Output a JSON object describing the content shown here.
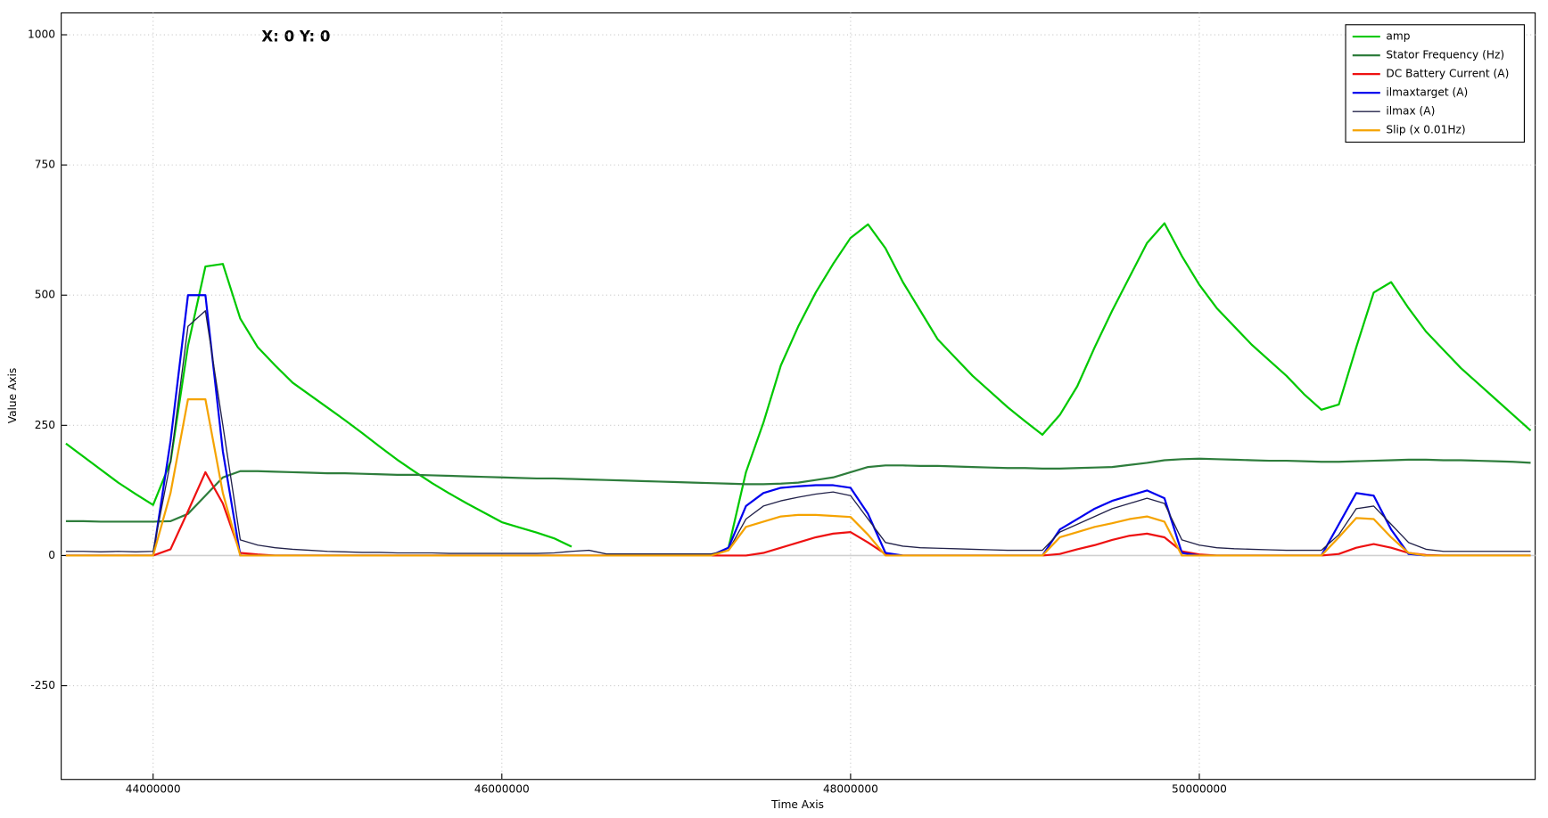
{
  "chart_data": {
    "type": "line",
    "cursor_readout": "X: 0  Y: 0",
    "x_label": "Time Axis",
    "y_label": "Value Axis",
    "x": [
      43500000,
      43600000,
      43700000,
      43800000,
      43900000,
      44000000,
      44100000,
      44200000,
      44300000,
      44400000,
      44500000,
      44600000,
      44700000,
      44800000,
      44900000,
      45000000,
      45100000,
      45200000,
      45300000,
      45400000,
      45500000,
      45600000,
      45700000,
      45800000,
      45900000,
      46000000,
      46100000,
      46200000,
      46300000,
      46400000,
      46500000,
      46600000,
      46700000,
      46800000,
      46900000,
      47000000,
      47100000,
      47200000,
      47300000,
      47400000,
      47500000,
      47600000,
      47700000,
      47800000,
      47900000,
      48000000,
      48100000,
      48200000,
      48300000,
      48400000,
      48500000,
      48600000,
      48700000,
      48800000,
      48900000,
      49000000,
      49100000,
      49200000,
      49300000,
      49400000,
      49500000,
      49600000,
      49700000,
      49800000,
      49900000,
      50000000,
      50100000,
      50200000,
      50300000,
      50400000,
      50500000,
      50600000,
      50700000,
      50800000,
      50900000,
      51000000,
      51100000,
      51200000,
      51300000,
      51400000,
      51500000,
      51600000,
      51700000,
      51800000,
      51900000
    ],
    "series": [
      {
        "name": "amp",
        "color": "#00c800",
        "width": 2,
        "values": [
          215,
          190,
          165,
          140,
          118,
          97,
          180,
          403,
          555,
          560,
          455,
          400,
          365,
          332,
          308,
          284,
          260,
          235,
          209,
          184,
          161,
          139,
          119,
          100,
          82,
          64,
          54,
          44,
          33,
          17,
          null,
          null,
          null,
          null,
          null,
          null,
          null,
          null,
          15,
          160,
          255,
          365,
          440,
          505,
          560,
          610,
          636,
          590,
          525,
          470,
          415,
          380,
          345,
          315,
          285,
          258,
          232,
          270,
          325,
          400,
          470,
          535,
          600,
          638,
          575,
          520,
          475,
          440,
          405,
          375,
          345,
          310,
          280,
          290,
          400,
          505,
          525,
          475,
          430,
          395,
          360,
          330,
          300,
          270,
          240
        ]
      },
      {
        "name": "Stator Frequency (Hz)",
        "color": "#2e7d3c",
        "width": 2,
        "values": [
          66,
          66,
          65,
          65,
          65,
          65,
          66,
          80,
          115,
          150,
          162,
          162,
          161,
          160,
          159,
          158,
          158,
          157,
          156,
          155,
          155,
          154,
          153,
          152,
          151,
          150,
          149,
          148,
          148,
          147,
          146,
          145,
          144,
          143,
          142,
          141,
          140,
          139,
          138,
          137,
          137,
          138,
          140,
          145,
          150,
          160,
          170,
          173,
          173,
          172,
          172,
          171,
          170,
          169,
          168,
          168,
          167,
          167,
          168,
          169,
          170,
          174,
          178,
          183,
          185,
          186,
          185,
          184,
          183,
          182,
          182,
          181,
          180,
          180,
          181,
          182,
          183,
          184,
          184,
          183,
          183,
          182,
          181,
          180,
          178
        ]
      },
      {
        "name": "DC Battery Current (A)",
        "color": "#ee1111",
        "width": 2,
        "values": [
          0,
          0,
          0,
          0,
          0,
          0,
          12,
          85,
          160,
          100,
          5,
          2,
          0,
          0,
          0,
          0,
          0,
          0,
          0,
          0,
          0,
          0,
          0,
          0,
          0,
          0,
          0,
          0,
          0,
          0,
          0,
          0,
          0,
          0,
          0,
          0,
          0,
          0,
          0,
          0,
          5,
          15,
          25,
          35,
          42,
          45,
          25,
          3,
          0,
          0,
          0,
          0,
          0,
          0,
          0,
          0,
          0,
          3,
          12,
          20,
          30,
          38,
          42,
          35,
          8,
          2,
          0,
          0,
          0,
          0,
          0,
          0,
          0,
          3,
          15,
          22,
          15,
          5,
          1,
          0,
          0,
          0,
          0,
          0,
          0
        ]
      },
      {
        "name": "ilmaxtarget (A)",
        "color": "#0000ee",
        "width": 2,
        "values": [
          0,
          0,
          0,
          0,
          0,
          0,
          220,
          500,
          500,
          200,
          0,
          0,
          0,
          0,
          0,
          0,
          0,
          0,
          0,
          0,
          0,
          0,
          0,
          0,
          0,
          0,
          0,
          0,
          0,
          0,
          0,
          0,
          0,
          0,
          0,
          0,
          0,
          0,
          15,
          95,
          120,
          130,
          133,
          135,
          135,
          130,
          80,
          5,
          0,
          0,
          0,
          0,
          0,
          0,
          0,
          0,
          0,
          50,
          70,
          90,
          105,
          115,
          125,
          110,
          5,
          0,
          0,
          0,
          0,
          0,
          0,
          0,
          0,
          60,
          120,
          115,
          50,
          3,
          0,
          0,
          0,
          0,
          0,
          0,
          0
        ]
      },
      {
        "name": "ilmax (A)",
        "color": "#22224a",
        "width": 1.2,
        "values": [
          8,
          8,
          7,
          8,
          7,
          8,
          180,
          440,
          470,
          250,
          30,
          20,
          15,
          12,
          10,
          8,
          7,
          6,
          6,
          5,
          5,
          5,
          4,
          4,
          4,
          4,
          4,
          4,
          5,
          8,
          10,
          3,
          3,
          3,
          3,
          3,
          3,
          3,
          10,
          70,
          95,
          105,
          112,
          118,
          122,
          115,
          70,
          25,
          18,
          15,
          14,
          13,
          12,
          11,
          10,
          10,
          10,
          45,
          60,
          75,
          90,
          100,
          110,
          100,
          30,
          20,
          15,
          13,
          12,
          11,
          10,
          10,
          10,
          40,
          90,
          95,
          60,
          25,
          12,
          8,
          8,
          8,
          8,
          8,
          8
        ]
      },
      {
        "name": "Slip (x 0.01Hz)",
        "color": "#f5a300",
        "width": 2,
        "values": [
          0,
          0,
          0,
          0,
          0,
          0,
          120,
          300,
          300,
          120,
          0,
          0,
          0,
          0,
          0,
          0,
          0,
          0,
          0,
          0,
          0,
          0,
          0,
          0,
          0,
          0,
          0,
          0,
          0,
          0,
          0,
          0,
          0,
          0,
          0,
          0,
          0,
          0,
          10,
          55,
          65,
          75,
          78,
          78,
          76,
          74,
          40,
          0,
          0,
          0,
          0,
          0,
          0,
          0,
          0,
          0,
          0,
          35,
          45,
          55,
          62,
          70,
          75,
          65,
          0,
          0,
          0,
          0,
          0,
          0,
          0,
          0,
          0,
          35,
          72,
          70,
          35,
          5,
          0,
          0,
          0,
          0,
          0,
          0,
          0
        ]
      }
    ],
    "xlim": [
      43473000,
      51926000
    ],
    "ylim": [
      -430,
      1042
    ],
    "xticks": [
      44000000,
      46000000,
      48000000,
      50000000
    ],
    "yticks": [
      -250,
      0,
      250,
      500,
      750,
      1000
    ],
    "grid": true,
    "legend": "upper right"
  }
}
